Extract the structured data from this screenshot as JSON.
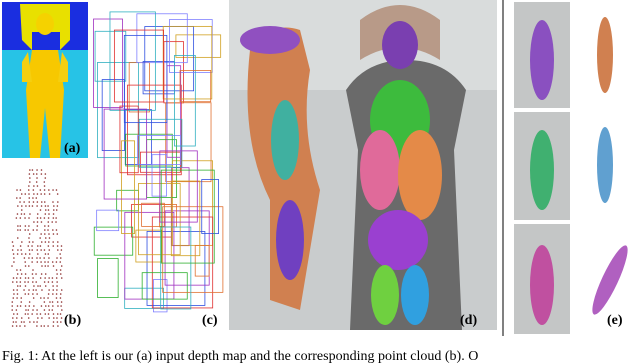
{
  "panels": [
    {
      "label": "(a)"
    },
    {
      "label": "(b)"
    },
    {
      "label": "(c)"
    },
    {
      "label": "(d)"
    },
    {
      "label": "(e)"
    }
  ],
  "caption": "Fig. 1: At the left is our (a) input depth map and the corresponding point cloud (b). O"
}
